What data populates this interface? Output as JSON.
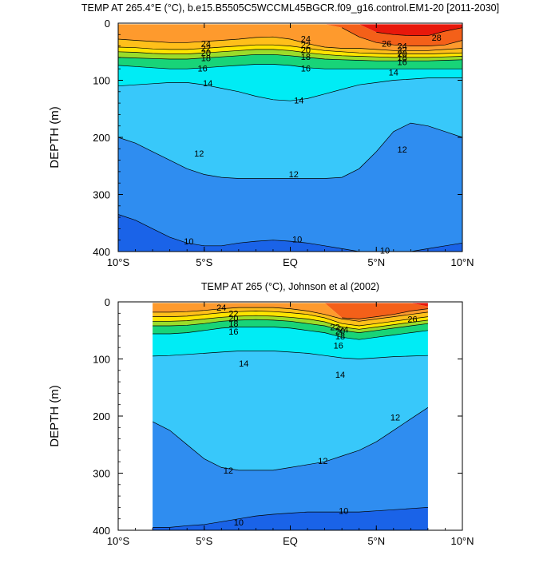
{
  "chart_data": [
    {
      "type": "contour",
      "title": "TEMP AT 265.4°E (°C), b.e15.B5505C5WCCML45BGCR.f09_g16.control.EM1-20 [2011-2030]",
      "xlabel": "",
      "ylabel": "DEPTH (m)",
      "xlim": [
        -10,
        10
      ],
      "ylim": [
        400,
        0
      ],
      "x_ticks": [
        {
          "value": -10,
          "label": "10°S"
        },
        {
          "value": -5,
          "label": "5°S"
        },
        {
          "value": 0,
          "label": "EQ"
        },
        {
          "value": 5,
          "label": "5°N"
        },
        {
          "value": 10,
          "label": "10°N"
        }
      ],
      "y_ticks": [
        0,
        100,
        200,
        300,
        400
      ],
      "data_x_range": [
        -10,
        10
      ],
      "contour_levels": [
        10,
        12,
        14,
        16,
        18,
        20,
        22,
        24,
        26,
        28
      ],
      "contours": [
        {
          "level": 28,
          "depth": [
            null,
            null,
            null,
            null,
            null,
            null,
            null,
            null,
            null,
            null,
            null,
            null,
            null,
            null,
            null,
            16,
            20,
            22,
            22,
            14,
            8
          ]
        },
        {
          "level": 26,
          "depth": [
            null,
            null,
            null,
            null,
            null,
            null,
            null,
            null,
            null,
            null,
            null,
            null,
            null,
            8,
            24,
            34,
            38,
            40,
            40,
            38,
            30
          ]
        },
        {
          "level": 24,
          "depth": [
            28,
            30,
            32,
            34,
            34,
            32,
            30,
            28,
            25,
            24,
            28,
            36,
            42,
            44,
            44,
            46,
            48,
            48,
            48,
            46,
            44
          ]
        },
        {
          "level": 22,
          "depth": [
            42,
            43,
            45,
            46,
            46,
            44,
            42,
            40,
            38,
            38,
            40,
            44,
            48,
            50,
            52,
            53,
            54,
            54,
            54,
            53,
            52
          ]
        },
        {
          "level": 20,
          "depth": [
            50,
            51,
            53,
            54,
            54,
            52,
            50,
            48,
            46,
            46,
            48,
            52,
            55,
            57,
            58,
            59,
            60,
            60,
            60,
            59,
            58
          ]
        },
        {
          "level": 18,
          "depth": [
            60,
            61,
            62,
            63,
            63,
            61,
            59,
            57,
            55,
            55,
            57,
            60,
            63,
            64,
            65,
            66,
            66,
            66,
            66,
            65,
            64
          ]
        },
        {
          "level": 16,
          "depth": [
            74,
            76,
            78,
            80,
            80,
            78,
            76,
            74,
            72,
            72,
            74,
            78,
            80,
            80,
            80,
            80,
            80,
            80,
            80,
            80,
            80
          ]
        },
        {
          "level": 14,
          "depth": [
            110,
            108,
            106,
            104,
            104,
            108,
            114,
            120,
            128,
            134,
            136,
            132,
            124,
            116,
            108,
            104,
            100,
            98,
            96,
            96,
            96
          ]
        },
        {
          "level": 12,
          "depth": [
            200,
            210,
            225,
            240,
            255,
            265,
            270,
            272,
            272,
            272,
            272,
            272,
            272,
            270,
            255,
            225,
            190,
            175,
            180,
            190,
            200
          ]
        },
        {
          "level": 10,
          "depth": [
            335,
            345,
            360,
            375,
            385,
            390,
            390,
            385,
            382,
            380,
            382,
            385,
            390,
            395,
            400,
            400,
            400,
            400,
            395,
            390,
            385
          ]
        }
      ],
      "contour_labels": [
        {
          "text": "24",
          "x": -4.9,
          "y": 36
        },
        {
          "text": "22",
          "x": -4.9,
          "y": 44
        },
        {
          "text": "20",
          "x": -4.9,
          "y": 52
        },
        {
          "text": "18",
          "x": -4.9,
          "y": 61
        },
        {
          "text": "16",
          "x": -5.1,
          "y": 79
        },
        {
          "text": "14",
          "x": -4.8,
          "y": 105
        },
        {
          "text": "24",
          "x": 0.9,
          "y": 27
        },
        {
          "text": "22",
          "x": 0.9,
          "y": 38
        },
        {
          "text": "20",
          "x": 0.9,
          "y": 47
        },
        {
          "text": "18",
          "x": 0.9,
          "y": 59
        },
        {
          "text": "16",
          "x": 0.9,
          "y": 79
        },
        {
          "text": "14",
          "x": 0.5,
          "y": 135
        },
        {
          "text": "26",
          "x": 5.6,
          "y": 36
        },
        {
          "text": "24",
          "x": 6.5,
          "y": 40
        },
        {
          "text": "22",
          "x": 6.5,
          "y": 47
        },
        {
          "text": "20",
          "x": 6.5,
          "y": 53
        },
        {
          "text": "18",
          "x": 6.5,
          "y": 60
        },
        {
          "text": "16",
          "x": 6.5,
          "y": 68
        },
        {
          "text": "14",
          "x": 6.0,
          "y": 86
        },
        {
          "text": "28",
          "x": 8.5,
          "y": 25
        },
        {
          "text": "12",
          "x": -5.3,
          "y": 228
        },
        {
          "text": "12",
          "x": 0.2,
          "y": 264
        },
        {
          "text": "12",
          "x": 6.5,
          "y": 221
        },
        {
          "text": "10",
          "x": -5.9,
          "y": 382
        },
        {
          "text": "10",
          "x": 0.4,
          "y": 378
        },
        {
          "text": "10",
          "x": 5.5,
          "y": 398
        }
      ]
    },
    {
      "type": "contour",
      "title": "TEMP AT 265 (°C), Johnson et al (2002)",
      "xlabel": "",
      "ylabel": "DEPTH (m)",
      "xlim": [
        -10,
        10
      ],
      "ylim": [
        400,
        0
      ],
      "x_ticks": [
        {
          "value": -10,
          "label": "10°S"
        },
        {
          "value": -5,
          "label": "5°S"
        },
        {
          "value": 0,
          "label": "EQ"
        },
        {
          "value": 5,
          "label": "5°N"
        },
        {
          "value": 10,
          "label": "10°N"
        }
      ],
      "y_ticks": [
        0,
        100,
        200,
        300,
        400
      ],
      "data_x_range": [
        -8,
        8
      ],
      "contour_levels": [
        10,
        12,
        14,
        16,
        18,
        20,
        22,
        24,
        26,
        28
      ],
      "contours": [
        {
          "level": 28,
          "depth": [
            null,
            null,
            null,
            null,
            null,
            null,
            null,
            null,
            null,
            null,
            null,
            null,
            null,
            null,
            null,
            null,
            8
          ]
        },
        {
          "level": 26,
          "depth": [
            null,
            null,
            null,
            null,
            null,
            null,
            null,
            null,
            null,
            null,
            null,
            28,
            30,
            26,
            22,
            16,
            12
          ]
        },
        {
          "level": 24,
          "depth": [
            18,
            18,
            17,
            15,
            12,
            10,
            10,
            10,
            12,
            16,
            22,
            30,
            34,
            30,
            26,
            22,
            18
          ]
        },
        {
          "level": 22,
          "depth": [
            26,
            26,
            25,
            22,
            19,
            17,
            16,
            17,
            19,
            22,
            28,
            38,
            42,
            38,
            34,
            30,
            26
          ]
        },
        {
          "level": 20,
          "depth": [
            34,
            34,
            33,
            30,
            27,
            25,
            24,
            25,
            27,
            30,
            35,
            44,
            48,
            44,
            40,
            36,
            32
          ]
        },
        {
          "level": 18,
          "depth": [
            42,
            42,
            41,
            38,
            34,
            32,
            31,
            32,
            34,
            38,
            42,
            50,
            54,
            50,
            46,
            42,
            38
          ]
        },
        {
          "level": 16,
          "depth": [
            56,
            56,
            54,
            50,
            46,
            44,
            44,
            44,
            46,
            50,
            54,
            62,
            66,
            62,
            58,
            54,
            50
          ]
        },
        {
          "level": 14,
          "depth": [
            95,
            94,
            92,
            90,
            88,
            86,
            86,
            86,
            88,
            90,
            94,
            98,
            100,
            98,
            96,
            95,
            94
          ]
        },
        {
          "level": 12,
          "depth": [
            210,
            225,
            250,
            275,
            290,
            295,
            295,
            295,
            290,
            285,
            280,
            270,
            260,
            245,
            225,
            205,
            185
          ]
        },
        {
          "level": 10,
          "depth": [
            395,
            395,
            392,
            390,
            385,
            380,
            375,
            372,
            370,
            368,
            368,
            368,
            368,
            366,
            364,
            362,
            360
          ]
        }
      ],
      "contour_labels": [
        {
          "text": "24",
          "x": -4.0,
          "y": 10
        },
        {
          "text": "22",
          "x": -3.3,
          "y": 20
        },
        {
          "text": "20",
          "x": -3.3,
          "y": 29
        },
        {
          "text": "18",
          "x": -3.3,
          "y": 38
        },
        {
          "text": "16",
          "x": -3.3,
          "y": 52
        },
        {
          "text": "14",
          "x": -2.7,
          "y": 108
        },
        {
          "text": "22",
          "x": 2.6,
          "y": 44
        },
        {
          "text": "20",
          "x": 2.9,
          "y": 51
        },
        {
          "text": "18",
          "x": 2.9,
          "y": 60
        },
        {
          "text": "16",
          "x": 2.8,
          "y": 76
        },
        {
          "text": "24",
          "x": 3.1,
          "y": 48
        },
        {
          "text": "26",
          "x": 7.1,
          "y": 30
        },
        {
          "text": "14",
          "x": 2.9,
          "y": 127
        },
        {
          "text": "12",
          "x": 6.1,
          "y": 202
        },
        {
          "text": "12",
          "x": 1.9,
          "y": 278
        },
        {
          "text": "12",
          "x": -3.6,
          "y": 295
        },
        {
          "text": "10",
          "x": 3.1,
          "y": 366
        },
        {
          "text": "10",
          "x": -3.0,
          "y": 386
        }
      ]
    }
  ]
}
